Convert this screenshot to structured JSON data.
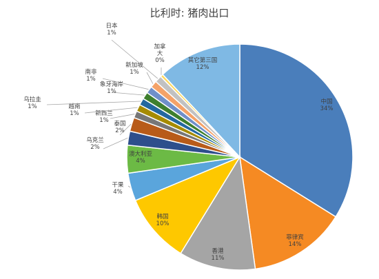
{
  "chart_data": {
    "type": "pie",
    "title": "比利时: 猪肉出口",
    "categories": [
      "中国",
      "菲律宾",
      "香港",
      "韩国",
      "干果",
      "澳大利亚",
      "乌克兰",
      "泰国",
      "新西兰",
      "越南",
      "乌拉圭",
      "象牙海岸",
      "南非",
      "新加坡",
      "日本",
      "加拿大",
      "其它第三国"
    ],
    "percent_labels": [
      "34%",
      "14%",
      "11%",
      "10%",
      "4%",
      "4%",
      "2%",
      "2%",
      "1%",
      "1%",
      "1%",
      "1%",
      "1%",
      "1%",
      "1%",
      "0%",
      "12%"
    ],
    "values": [
      34,
      14,
      11,
      10,
      4,
      4,
      2,
      2,
      1,
      1,
      1,
      1,
      1,
      1,
      1,
      0.4,
      12
    ],
    "colors": [
      "#4a7ebb",
      "#f58a23",
      "#a5a5a5",
      "#fec800",
      "#5aa5dc",
      "#6cba45",
      "#2e4f8c",
      "#b85b19",
      "#777777",
      "#a68b00",
      "#23689f",
      "#3e7f2e",
      "#6f8fc9",
      "#f4a268",
      "#c1c1c1",
      "#ffd85b",
      "#7fb9e4"
    ],
    "start_angle_deg": 90,
    "direction": "clockwise",
    "legend": "none"
  }
}
